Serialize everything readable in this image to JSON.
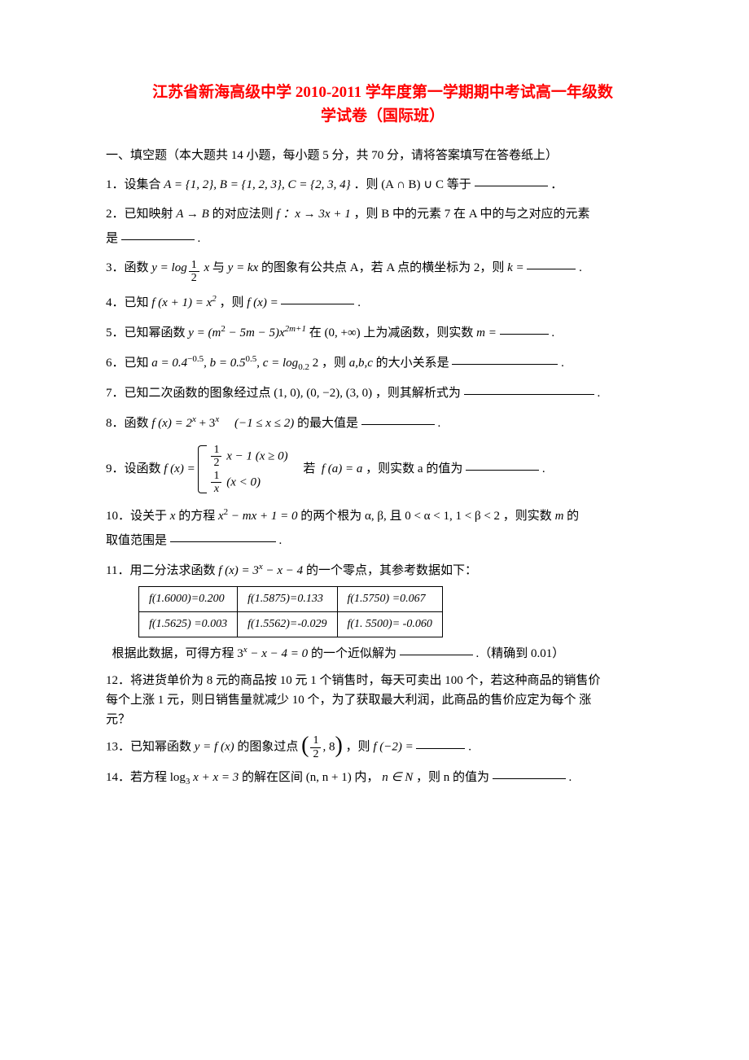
{
  "title": {
    "line1": "江苏省新海高级中学 2010-2011 学年度第一学期期中考试高一年级数",
    "line2": "学试卷（国际班）",
    "color": "#ff0000"
  },
  "section_header": "一、填空题（本大题共 14 小题，每小题 5 分，共 70 分，请将答案填写在答卷纸上）",
  "q1": {
    "prefix": "1．设集合 ",
    "expr_A": "A = {1, 2}, B = {1, 2, 3}, C = {2, 3, 4}",
    "mid": " ．则 (A ∩ B) ∪ C 等于",
    "suffix": " ．"
  },
  "q2": {
    "prefix": "2．已知映射 ",
    "expr": "A → B",
    "mid1": " 的对应法则 ",
    "f_expr": "f ：x → 3x + 1",
    "mid2": "，则 B 中的元素 7 在 A 中的与之对应的元素",
    "line2_prefix": "是",
    "suffix": "."
  },
  "q3": {
    "prefix": "3．函数 ",
    "y1": "y = log",
    "base_num": "1",
    "base_den": "2",
    "arg": " x",
    "mid1": " 与 ",
    "y2": "y = kx",
    "mid2": " 的图象有公共点 A，若 A 点的横坐标为 2，则 ",
    "k": "k = ",
    "suffix": "."
  },
  "q4": {
    "prefix": "4．已知 ",
    "f1": "f (x + 1) = x",
    "exp": "2",
    "mid": "，则 ",
    "f2": "f (x) = ",
    "suffix": "."
  },
  "q5": {
    "prefix": "5．已知幂函数 ",
    "y": "y = (m",
    "e1": "2",
    "mid1": " − 5m − 5)x",
    "e2": "2m+1",
    "mid2": " 在 (0, +∞) 上为减函数，则实数 ",
    "m": "m = ",
    "suffix": "."
  },
  "q6": {
    "prefix": "6．已知 ",
    "a": "a = 0.4",
    "ea": "−0.5",
    "sep1": ", ",
    "b": "b = 0.5",
    "eb": "0.5",
    "sep2": ", ",
    "c": "c = log",
    "cbase": "0.2",
    "carg": " 2",
    "mid": " ，则 ",
    "abc": "a,b,c",
    "mid2": " 的大小关系是",
    "suffix": "."
  },
  "q7": {
    "prefix": "7．已知二次函数的图象经过点 (1, 0), (0, −2), (3, 0) ，则其解析式为 ",
    "suffix": "."
  },
  "q8": {
    "prefix": "8．函数 ",
    "f": "f (x) = 2",
    "e1": "x",
    "plus": " + 3",
    "e2": "x",
    "domain": "    (−1 ≤ x ≤ 2)",
    "mid": " 的最大值是",
    "suffix": "."
  },
  "q9": {
    "prefix": "9．设函数 ",
    "f": "f (x) = ",
    "case1_num": "1",
    "case1_den": "2",
    "case1_rest": " x − 1 (x ≥ 0)",
    "case2_num": "1",
    "case2_den": "x",
    "case2_rest": " (x < 0)",
    "mid": "    若 ",
    "fa": "f (a) = a",
    "mid2": " ，则实数 a 的值为",
    "suffix": "."
  },
  "q10": {
    "prefix": "10．设关于 ",
    "x": "x",
    "mid1": " 的方程 ",
    "eq": "x",
    "e": "2",
    "rest": " − mx + 1 = 0",
    "mid2": " 的两个根为 α, β, 且 0 < α < 1,  1 < β < 2 ，则实数 ",
    "m": "m",
    "mid3": " 的",
    "line2_prefix": "取值范围是",
    "suffix": "."
  },
  "q11": {
    "prefix": "11．用二分法求函数 ",
    "f": "f (x) = 3",
    "e": "x",
    "rest": " − x − 4",
    "mid": " 的一个零点，其参考数据如下：",
    "table": {
      "r0": [
        "f(1.6000)=0.200",
        "f(1.5875)=0.133",
        "f(1.5750) =0.067"
      ],
      "r1": [
        "f(1.5625) =0.003",
        "f(1.5562)=-0.029",
        "f(1. 5500)= -0.060"
      ]
    },
    "line3_prefix": "  根据此数据，可得方程 3",
    "e2": "x",
    "rest2": " − x − 4 = 0",
    "mid2": " 的一个近似解为",
    "suffix": ".（精确到 0.01）"
  },
  "q12": {
    "line1": "12．将进货单价为 8 元的商品按 10 元 1 个销售时，每天可卖出 100 个，若这种商品的销售价",
    "line2": "每个上涨 1 元，则日销售量就减少 10 个，为了获取最大利润，此商品的售价应定为每个 涨",
    "line3": "元？"
  },
  "q13": {
    "prefix": "13．已知幂函数 ",
    "y": "y = f (x)",
    "mid1": " 的图象过点 ",
    "pt_num": "1",
    "pt_den": "2",
    "pt_rest": ", 8",
    "mid2": "，则 ",
    "f": "f (−2) = ",
    "suffix": "."
  },
  "q14": {
    "prefix": "14．若方程 log",
    "base": "3",
    "rest": " x + x = 3",
    "mid1": " 的解在区间 (n, n + 1) 内，",
    "n": "n ∈ N",
    "mid2": " ，则 n 的值为",
    "suffix": "."
  }
}
